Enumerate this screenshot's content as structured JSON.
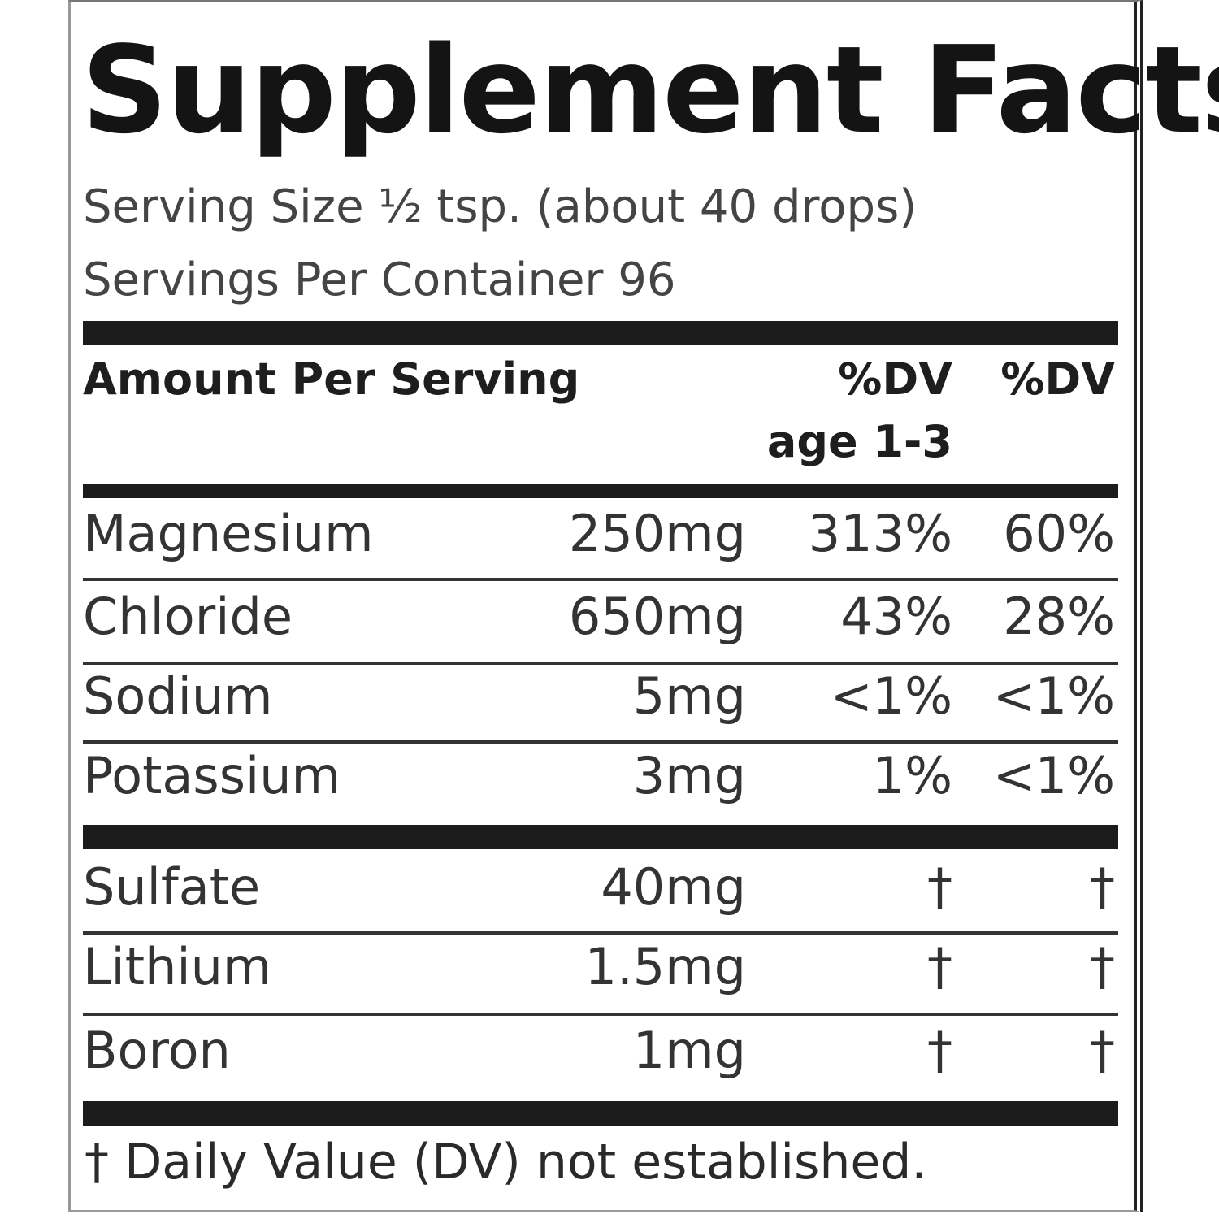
{
  "title": "Supplement Facts",
  "serving_size": "Serving Size ½ tsp. (about 40 drops)",
  "servings_per_container": "Servings Per Container 96",
  "header": {
    "amount": "Amount Per Serving",
    "dv1_line1": "%DV",
    "dv1_line2": "age 1-3",
    "dv2": "%DV"
  },
  "rows": [
    {
      "name": "Magnesium",
      "amount": "250mg",
      "dv1": "313%",
      "dv2": "60%"
    },
    {
      "name": "Chloride",
      "amount": "650mg",
      "dv1": "43%",
      "dv2": "28%"
    },
    {
      "name": "Sodium",
      "amount": "5mg",
      "dv1": "<1%",
      "dv2": "<1%"
    },
    {
      "name": "Potassium",
      "amount": "3mg",
      "dv1": "1%",
      "dv2": "<1%"
    },
    {
      "name": "Sulfate",
      "amount": "40mg",
      "dv1": "†",
      "dv2": "†"
    },
    {
      "name": "Lithium",
      "amount": "1.5mg",
      "dv1": "†",
      "dv2": "†"
    },
    {
      "name": "Boron",
      "amount": "1mg",
      "dv1": "†",
      "dv2": "†"
    }
  ],
  "footnote": "† Daily Value (DV) not established."
}
